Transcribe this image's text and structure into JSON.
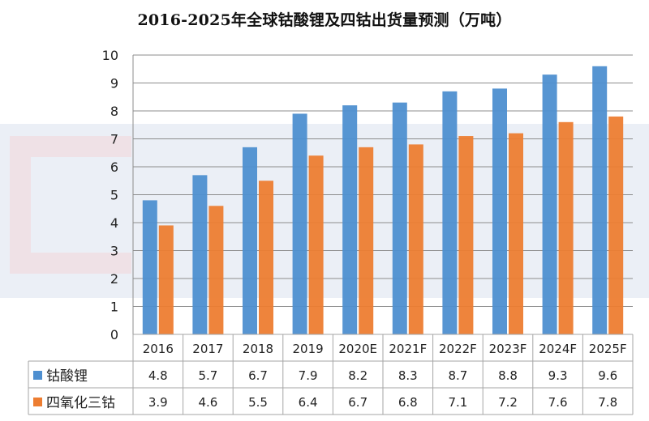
{
  "chart_data": {
    "type": "bar",
    "title": "2016-2025年全球钴酸锂及四钴出货量预测（万吨）",
    "categories": [
      "2016",
      "2017",
      "2018",
      "2019",
      "2020E",
      "2021F",
      "2022F",
      "2023F",
      "2024F",
      "2025F"
    ],
    "series": [
      {
        "name": "钴酸锂",
        "color": "#4e8fd0",
        "values": [
          4.8,
          5.7,
          6.7,
          7.9,
          8.2,
          8.3,
          8.7,
          8.8,
          9.3,
          9.6
        ]
      },
      {
        "name": "四氧化三钴",
        "color": "#ed7d31",
        "values": [
          3.9,
          4.6,
          5.5,
          6.4,
          6.7,
          6.8,
          7.1,
          7.2,
          7.6,
          7.8
        ]
      }
    ],
    "xlabel": "",
    "ylabel": "",
    "ylim": [
      0,
      10
    ],
    "yticks": [
      "0",
      "1",
      "2",
      "3",
      "4",
      "5",
      "6",
      "7",
      "8",
      "9",
      "10"
    ],
    "grid": true,
    "legend": "data-table-below"
  }
}
